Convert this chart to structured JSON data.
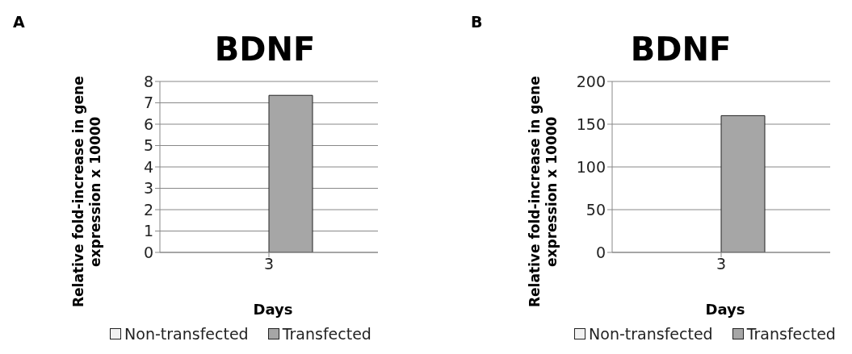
{
  "chart_data": [
    {
      "type": "bar",
      "title": "BDNF",
      "annotations": [
        "A"
      ],
      "ylabel": "Relative fold-increase in gene expression x 10000",
      "xlabel": "Days",
      "categories": [
        "3"
      ],
      "series": [
        {
          "name": "Non-transfected",
          "color": "#f2f2f2",
          "values": [
            0
          ]
        },
        {
          "name": "Transfected",
          "color": "#a6a6a6",
          "values": [
            7.35
          ]
        }
      ],
      "ylim": [
        0,
        8
      ],
      "yticks": [
        0,
        1,
        2,
        3,
        4,
        5,
        6,
        7,
        8
      ],
      "grid": "y",
      "legend": "bottom"
    },
    {
      "type": "bar",
      "title": "BDNF",
      "annotations": [
        "B"
      ],
      "ylabel": "Relative fold-increase in gene expression x 10000",
      "xlabel": "Days",
      "categories": [
        "3"
      ],
      "series": [
        {
          "name": "Non-transfected",
          "color": "#f2f2f2",
          "values": [
            0
          ]
        },
        {
          "name": "Transfected",
          "color": "#a6a6a6",
          "values": [
            160
          ]
        }
      ],
      "ylim": [
        0,
        200
      ],
      "yticks": [
        0,
        50,
        100,
        150,
        200
      ],
      "grid": "y",
      "legend": "bottom"
    }
  ]
}
